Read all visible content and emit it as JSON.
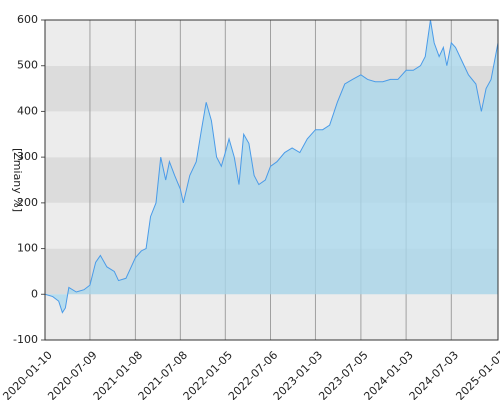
{
  "chart_data": {
    "type": "area",
    "y_label": "[Zmiany %]",
    "x": [
      "2020-01-10",
      "2020-02-10",
      "2020-03-05",
      "2020-03-20",
      "2020-04-01",
      "2020-04-15",
      "2020-05-15",
      "2020-06-15",
      "2020-07-09",
      "2020-08-01",
      "2020-08-20",
      "2020-09-15",
      "2020-10-15",
      "2020-11-01",
      "2020-12-01",
      "2021-01-08",
      "2021-02-01",
      "2021-02-20",
      "2021-03-10",
      "2021-04-01",
      "2021-04-20",
      "2021-05-10",
      "2021-05-25",
      "2021-06-15",
      "2021-07-08",
      "2021-07-20",
      "2021-08-15",
      "2021-09-10",
      "2021-10-01",
      "2021-10-20",
      "2021-11-10",
      "2021-12-01",
      "2021-12-20",
      "2022-01-05",
      "2022-01-20",
      "2022-02-10",
      "2022-03-01",
      "2022-03-20",
      "2022-04-10",
      "2022-05-01",
      "2022-05-20",
      "2022-06-15",
      "2022-07-06",
      "2022-08-01",
      "2022-09-01",
      "2022-10-01",
      "2022-11-01",
      "2022-12-01",
      "2023-01-03",
      "2023-02-01",
      "2023-03-01",
      "2023-04-01",
      "2023-05-01",
      "2023-06-01",
      "2023-07-05",
      "2023-08-01",
      "2023-09-01",
      "2023-10-01",
      "2023-11-01",
      "2023-12-01",
      "2024-01-03",
      "2024-02-01",
      "2024-03-01",
      "2024-03-20",
      "2024-04-10",
      "2024-04-25",
      "2024-05-15",
      "2024-06-01",
      "2024-06-15",
      "2024-07-03",
      "2024-07-20",
      "2024-08-15",
      "2024-09-10",
      "2024-10-10",
      "2024-11-01",
      "2024-11-20",
      "2024-12-10",
      "2025-01-07"
    ],
    "values": [
      0,
      -5,
      -15,
      -40,
      -30,
      15,
      5,
      10,
      20,
      70,
      85,
      60,
      50,
      30,
      35,
      80,
      95,
      100,
      170,
      200,
      300,
      250,
      290,
      260,
      230,
      200,
      260,
      290,
      360,
      420,
      380,
      300,
      280,
      310,
      340,
      300,
      240,
      350,
      330,
      260,
      240,
      250,
      280,
      290,
      310,
      320,
      310,
      340,
      360,
      360,
      370,
      420,
      460,
      470,
      480,
      470,
      465,
      465,
      470,
      470,
      490,
      490,
      500,
      520,
      600,
      550,
      520,
      540,
      500,
      550,
      540,
      510,
      480,
      460,
      400,
      450,
      470,
      550
    ],
    "line_color": "#4a9be8",
    "fill_color": "#a8d8ee",
    "ylim": [
      -100,
      600
    ],
    "yticks": [
      -100,
      0,
      100,
      200,
      300,
      400,
      500,
      600
    ],
    "xlim": [
      "2020-01-10",
      "2025-01-07"
    ],
    "xticks": [
      "2020-01-10",
      "2020-07-09",
      "2021-01-08",
      "2021-07-08",
      "2022-01-05",
      "2022-07-06",
      "2023-01-03",
      "2023-07-05",
      "2024-01-03",
      "2024-07-03",
      "2025-01-07"
    ],
    "grid": true
  }
}
